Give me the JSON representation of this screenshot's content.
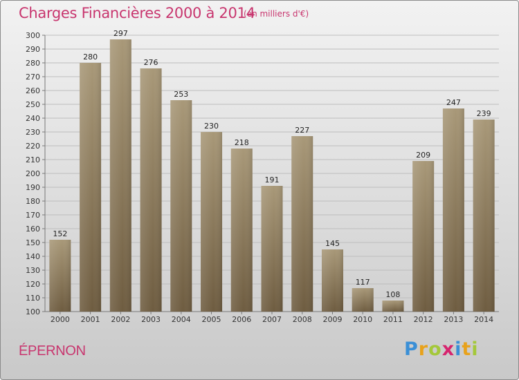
{
  "header": {
    "title": "Charges Financières 2000 à 2014",
    "unit": "(en milliers d'€)"
  },
  "footer": {
    "city": "ÉPERNON",
    "logo": "Proxiti",
    "logo_colors": [
      "#3a8fd6",
      "#e8a21b",
      "#a4c83a",
      "#d6246e",
      "#3a8fd6",
      "#e8a21b",
      "#a4c83a"
    ]
  },
  "chart_data": {
    "type": "bar",
    "title": "Charges Financières 2000 à 2014",
    "xlabel": "",
    "ylabel": "",
    "categories": [
      "2000",
      "2001",
      "2002",
      "2003",
      "2004",
      "2005",
      "2006",
      "2007",
      "2008",
      "2009",
      "2010",
      "2011",
      "2012",
      "2013",
      "2014"
    ],
    "values": [
      152,
      280,
      297,
      276,
      253,
      230,
      218,
      191,
      227,
      145,
      117,
      108,
      209,
      247,
      239
    ],
    "ylim": [
      100,
      300
    ],
    "ytick_step": 10,
    "grid": true,
    "bar_color_top": "#a89878",
    "bar_color_bottom": "#6e5c40"
  }
}
